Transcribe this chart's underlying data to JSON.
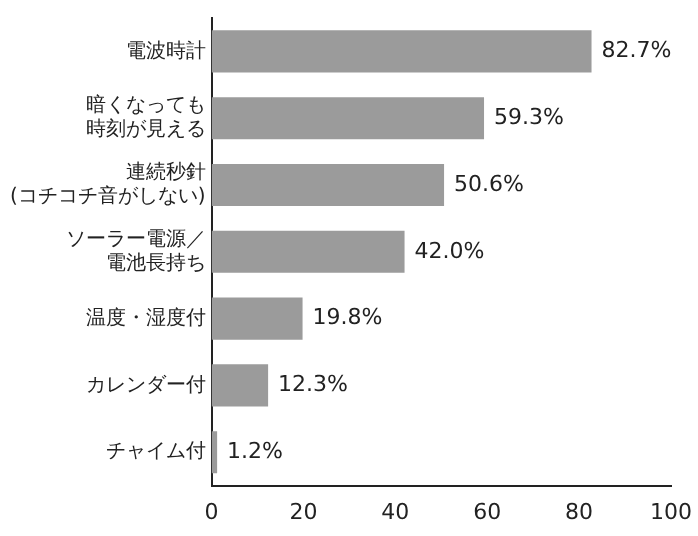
{
  "chart_data": {
    "type": "bar",
    "orientation": "horizontal",
    "categories": [
      "電波時計",
      "暗くなっても時刻が見える",
      "連続秒針\n(コチコチ音がしない)",
      "ソーラー電源／電池長持ち",
      "温度・湿度付",
      "カレンダー付",
      "チャイム付"
    ],
    "values": [
      82.7,
      59.3,
      50.6,
      42.0,
      19.8,
      12.3,
      1.2
    ],
    "value_labels": [
      "82.7%",
      "59.3%",
      "50.6%",
      "42.0%",
      "19.8%",
      "12.3%",
      "1.2%"
    ],
    "color": "#9b9b9b",
    "xlim": [
      0,
      100
    ],
    "xticks": [
      0,
      20,
      40,
      60,
      80,
      100
    ],
    "grid": false,
    "legend": false
  }
}
